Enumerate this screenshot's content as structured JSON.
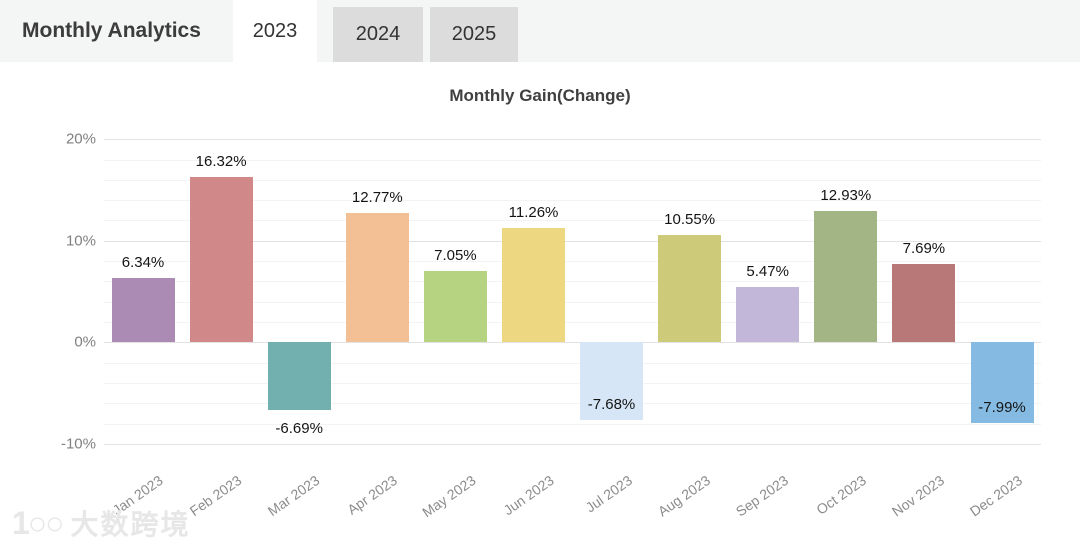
{
  "header": {
    "title": "Monthly Analytics",
    "tabs": [
      {
        "label": "2023",
        "active": true
      },
      {
        "label": "2024",
        "active": false
      },
      {
        "label": "2025",
        "active": false
      }
    ]
  },
  "chart_data": {
    "type": "bar",
    "title": "Monthly Gain(Change)",
    "xlabel": "",
    "ylabel": "",
    "categories": [
      "Jan 2023",
      "Feb 2023",
      "Mar 2023",
      "Apr 2023",
      "May 2023",
      "Jun 2023",
      "Jul 2023",
      "Aug 2023",
      "Sep 2023",
      "Oct 2023",
      "Nov 2023",
      "Dec 2023"
    ],
    "values": [
      6.34,
      16.32,
      -6.69,
      12.77,
      7.05,
      11.26,
      -7.68,
      10.55,
      5.47,
      12.93,
      7.69,
      -7.99
    ],
    "value_labels": [
      "6.34%",
      "16.32%",
      "-6.69%",
      "12.77%",
      "7.05%",
      "11.26%",
      "-7.68%",
      "10.55%",
      "5.47%",
      "12.93%",
      "7.69%",
      "-7.99%"
    ],
    "bar_colors": [
      "#ab8ab4",
      "#d18888",
      "#72b0b0",
      "#f3bf95",
      "#b5d381",
      "#edd781",
      "#d6e6f6",
      "#cdcb79",
      "#c3b7d9",
      "#a4b585",
      "#b87878",
      "#85bbe3"
    ],
    "label_placement": [
      "above",
      "above",
      "below",
      "above",
      "above",
      "above",
      "inside-bottom",
      "above",
      "above",
      "above",
      "above",
      "inside-bottom"
    ],
    "ylim": [
      -11.6,
      21.4
    ],
    "y_axis": {
      "ticks": [
        {
          "value": 20,
          "label": "20%"
        },
        {
          "value": 10,
          "label": "10%"
        },
        {
          "value": 0,
          "label": "0%"
        },
        {
          "value": -10,
          "label": "-10%"
        }
      ],
      "minor_step": 2,
      "minor_from": -10,
      "minor_to": 20
    },
    "grid": true,
    "legend": null
  },
  "watermark": {
    "logo": "1○○",
    "text": "大数跨境"
  }
}
